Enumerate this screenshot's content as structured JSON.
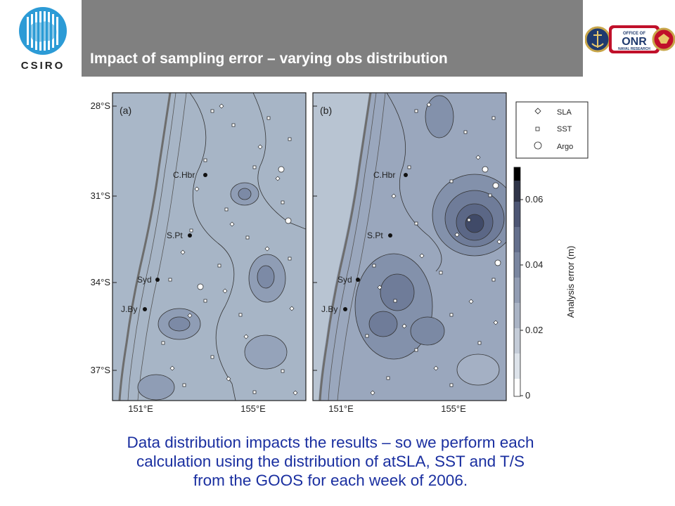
{
  "header": {
    "title": "Impact of sampling error – varying obs distribution",
    "org_logo_text": "CSIRO",
    "partner_logo_text": "ONR",
    "partner_logo_subtext": "OFFICE OF NAVAL RESEARCH"
  },
  "figure": {
    "panels": [
      {
        "label": "(a)",
        "places": [
          "C.Hbr",
          "S.Pt",
          "Syd",
          "J.By"
        ]
      },
      {
        "label": "(b)",
        "places": [
          "C.Hbr",
          "S.Pt",
          "Syd",
          "J.By"
        ]
      }
    ],
    "lat_ticks": [
      "28°S",
      "31°S",
      "34°S",
      "37°S"
    ],
    "lon_ticks": [
      "151°E",
      "155°E"
    ],
    "legend": [
      {
        "symbol": "diamond",
        "label": "SLA"
      },
      {
        "symbol": "square",
        "label": "SST"
      },
      {
        "symbol": "circle",
        "label": "Argo"
      }
    ],
    "colorbar": {
      "label": "Analysis error (m)",
      "ticks": [
        "0",
        "0.02",
        "0.04",
        "0.06"
      ]
    }
  },
  "caption": {
    "line1": "Data distribution impacts the results – so we perform each",
    "line2": "calculation using the distribution of atSLA, SST and T/S",
    "line3": "from the GOOS for each week of 2006."
  }
}
